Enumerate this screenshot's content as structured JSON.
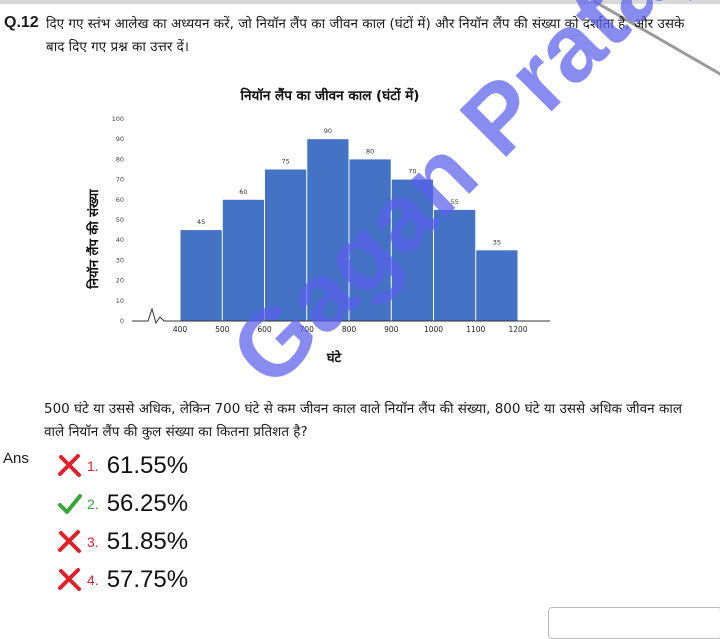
{
  "question": {
    "number": "Q.12",
    "text": "दिए गए स्तंभ आलेख का अध्ययन करें, जो नियॉन लैंप का जीवन काल (घंटों में) और नियॉन लैंप की संख्या को दर्शाता है, और उसके बाद दिए गए प्रश्न का उत्तर दें।",
    "prompt": "500 घंटे या उससे अधिक, लेकिन 700 घंटे से कम जीवन काल वाले नियॉन लैंप की संख्या, 800 घंटे या उससे अधिक जीवन काल वाले नियॉन लैंप की कुल संख्या का कितना प्रतिशत है?"
  },
  "chart_data": {
    "type": "bar",
    "title": "नियॉन लैंप का जीवन काल (घंटों में)",
    "xlabel": "घंटे",
    "ylabel": "नियॉन लैंप की संख्या",
    "bins": [
      [
        400,
        500
      ],
      [
        500,
        600
      ],
      [
        600,
        700
      ],
      [
        700,
        800
      ],
      [
        800,
        900
      ],
      [
        900,
        1000
      ],
      [
        1000,
        1100
      ],
      [
        1100,
        1200
      ]
    ],
    "values": [
      45,
      60,
      75,
      90,
      80,
      70,
      55,
      35
    ],
    "x_ticks": [
      "400",
      "500",
      "600",
      "700",
      "800",
      "900",
      "1000",
      "1100",
      "1200"
    ],
    "y_ticks": [
      "0",
      "10",
      "20",
      "30",
      "40",
      "50",
      "60",
      "70",
      "80",
      "90",
      "100"
    ],
    "ylim": [
      0,
      100
    ],
    "bar_color": "#4472c4",
    "grid": false,
    "axis_break": true
  },
  "answer": {
    "label": "Ans",
    "options": [
      {
        "num": "1.",
        "value": "61.55%",
        "status": "wrong"
      },
      {
        "num": "2.",
        "value": "56.25%",
        "status": "correct"
      },
      {
        "num": "3.",
        "value": "51.85%",
        "status": "wrong"
      },
      {
        "num": "4.",
        "value": "57.75%",
        "status": "wrong"
      }
    ]
  },
  "watermark": "Gagan Pratap M",
  "colors": {
    "wrong": "#e0202a",
    "correct": "#3aa53a",
    "watermark": "#5a5feb"
  }
}
